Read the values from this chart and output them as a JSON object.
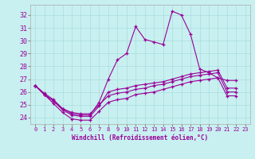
{
  "xlabel": "Windchill (Refroidissement éolien,°C)",
  "ylabel": "",
  "bg_color": "#c8f0f0",
  "line_color": "#990099",
  "grid_color": "#aadddd",
  "xlim": [
    -0.5,
    23.5
  ],
  "ylim": [
    23.5,
    32.8
  ],
  "yticks": [
    24,
    25,
    26,
    27,
    28,
    29,
    30,
    31,
    32
  ],
  "xticks": [
    0,
    1,
    2,
    3,
    4,
    5,
    6,
    7,
    8,
    9,
    10,
    11,
    12,
    13,
    14,
    15,
    16,
    17,
    18,
    19,
    20,
    21,
    22,
    23
  ],
  "line1": [
    26.5,
    25.9,
    25.4,
    24.7,
    24.3,
    24.2,
    24.2,
    25.2,
    27.0,
    28.5,
    29.0,
    31.1,
    30.1,
    29.9,
    29.7,
    32.3,
    32.0,
    30.5,
    27.8,
    27.5,
    27.1,
    26.9,
    26.9,
    null
  ],
  "line2": [
    26.5,
    25.8,
    25.3,
    24.6,
    24.2,
    24.1,
    24.1,
    24.9,
    26.0,
    26.2,
    26.3,
    26.5,
    26.6,
    26.7,
    26.8,
    27.0,
    27.2,
    27.4,
    27.5,
    27.6,
    27.7,
    26.3,
    26.3,
    null
  ],
  "line3": [
    26.5,
    25.8,
    25.3,
    24.7,
    24.4,
    24.3,
    24.3,
    25.0,
    25.7,
    25.9,
    26.0,
    26.2,
    26.3,
    26.5,
    26.6,
    26.8,
    27.0,
    27.2,
    27.3,
    27.4,
    27.5,
    26.0,
    26.0,
    null
  ],
  "line4": [
    26.5,
    25.8,
    25.1,
    24.4,
    23.9,
    23.8,
    23.8,
    24.5,
    25.2,
    25.4,
    25.5,
    25.8,
    25.9,
    26.0,
    26.2,
    26.4,
    26.6,
    26.8,
    26.9,
    27.0,
    27.1,
    25.7,
    25.7,
    null
  ]
}
